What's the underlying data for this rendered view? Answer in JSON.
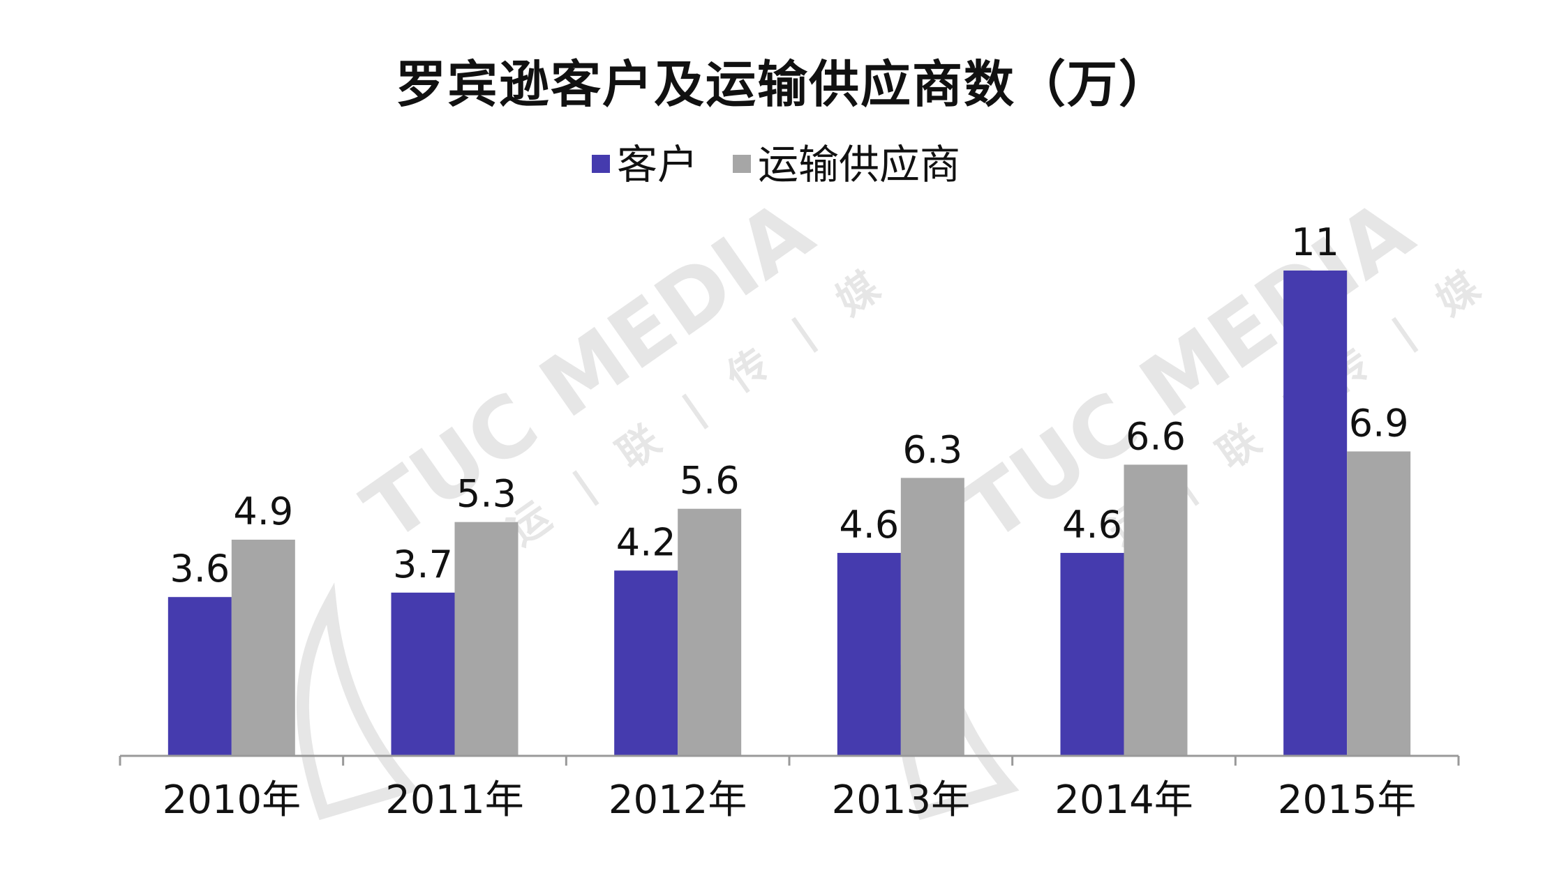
{
  "chart_data": {
    "type": "bar",
    "title": "罗宾逊客户及运输供应商数（万）",
    "categories": [
      "2010年",
      "2011年",
      "2012年",
      "2013年",
      "2014年",
      "2015年"
    ],
    "series": [
      {
        "name": "客户",
        "color": "#453BAE",
        "values": [
          3.6,
          3.7,
          4.2,
          4.6,
          4.6,
          11
        ],
        "labels": [
          "3.6",
          "3.7",
          "4.2",
          "4.6",
          "4.6",
          "11"
        ]
      },
      {
        "name": "运输供应商",
        "color": "#A6A6A6",
        "values": [
          4.9,
          5.3,
          5.6,
          6.3,
          6.6,
          6.9
        ],
        "labels": [
          "4.9",
          "5.3",
          "5.6",
          "6.3",
          "6.6",
          "6.9"
        ]
      }
    ],
    "ylim": [
      0,
      11
    ],
    "grid": false,
    "legend": "top-center",
    "xlabel": "",
    "ylabel": ""
  },
  "watermark": {
    "brand": "TUC MEDIA",
    "chinese": "运 | 联 | 传 | 媒",
    "color": "#E6E6E6"
  }
}
